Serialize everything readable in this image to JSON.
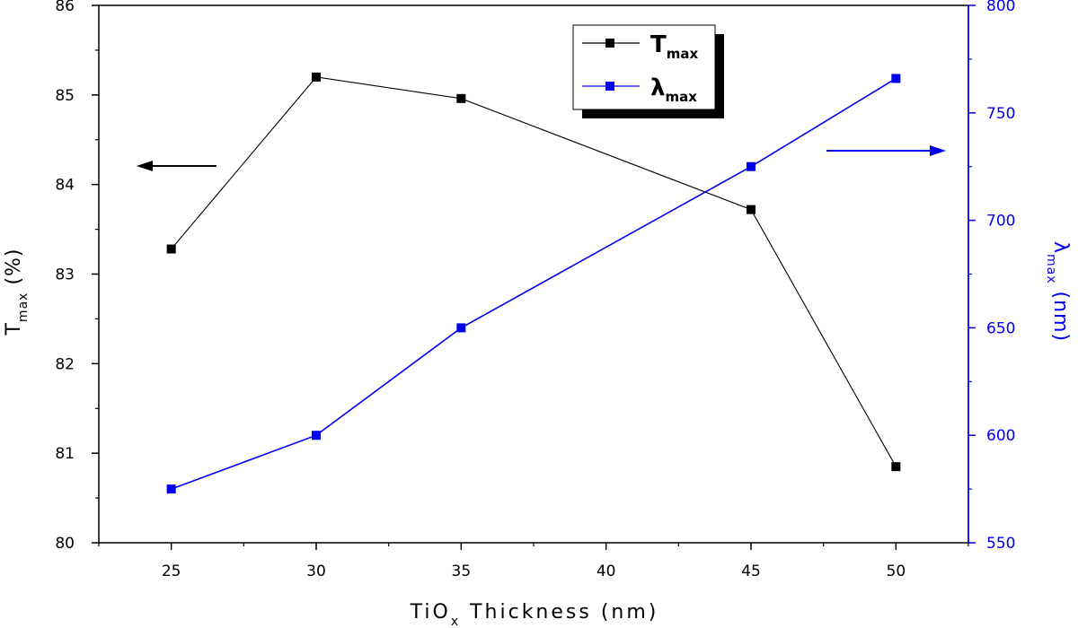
{
  "chart_data": {
    "type": "line",
    "x": [
      25,
      30,
      35,
      45,
      50
    ],
    "xlim": [
      22.5,
      52.5
    ],
    "xticks": [
      25,
      30,
      35,
      40,
      45,
      50
    ],
    "xlabel": {
      "main": "TiO",
      "sub": "x",
      "rest": " Thickness (nm)"
    },
    "y_left": {
      "label": {
        "main": "T",
        "sub": "max",
        "rest": " (%)"
      },
      "lim": [
        80,
        86
      ],
      "ticks": [
        80,
        81,
        82,
        83,
        84,
        85,
        86
      ],
      "color": "#000000"
    },
    "y_right": {
      "label": {
        "main": "λ",
        "sub": "max",
        "rest": " (nm)"
      },
      "lim": [
        550,
        800
      ],
      "ticks": [
        550,
        600,
        650,
        700,
        750,
        800
      ],
      "color": "#0000ee"
    },
    "series": [
      {
        "name": "T",
        "name_sub": "max",
        "axis": "left",
        "color": "#000000",
        "values": [
          83.28,
          85.2,
          84.96,
          83.72,
          80.85
        ]
      },
      {
        "name": "λ",
        "name_sub": "max",
        "axis": "right",
        "color": "#0000ee",
        "values": [
          575,
          600,
          650,
          725,
          766
        ]
      }
    ],
    "legend_position": "top-center"
  }
}
